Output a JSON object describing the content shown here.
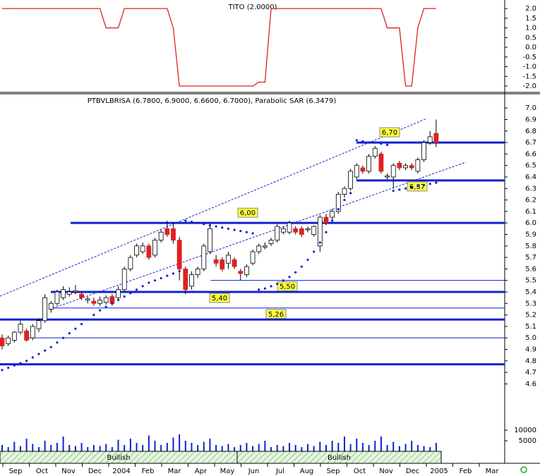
{
  "chart_data": [
    {
      "type": "line",
      "title": "TITO (2.0000)",
      "color": "#e02020",
      "ylim": [
        -2.29,
        2.44
      ],
      "yticks": [
        {
          "value": 2,
          "label": "2.0"
        },
        1.5,
        {
          "value": 1,
          "label": "1.0"
        },
        0.5,
        {
          "value": 0,
          "label": "0.0"
        },
        -0.5,
        {
          "value": -1,
          "label": "-1.0"
        },
        -1.5,
        {
          "value": -2,
          "label": "-2.0"
        }
      ],
      "values": [
        2,
        2,
        2,
        2,
        2,
        2,
        2,
        2,
        2,
        2,
        2,
        2,
        2,
        2,
        2,
        2,
        2,
        1,
        1,
        1,
        2,
        2,
        2,
        2,
        2,
        2,
        2,
        2,
        1,
        -2,
        -2,
        -2,
        -2,
        -2,
        -2,
        -2,
        -2,
        -2,
        -2,
        -2,
        -2,
        -2,
        -1.8,
        -1.8,
        2,
        2,
        2,
        2,
        2,
        2,
        2,
        2,
        2,
        2,
        2,
        2,
        2,
        2,
        2,
        2,
        2,
        2,
        2,
        1,
        1,
        1,
        -2,
        -2,
        1,
        2,
        2,
        2
      ]
    },
    {
      "type": "candlestick",
      "title": "PTBVLBRISA (6.7800, 6.9000, 6.6600, 6.7000), Parabolic SAR (6.3479)",
      "up_color": "#ffffff",
      "down_color": "#e02020",
      "sar_color": "#1020d0",
      "level_color": "#1020d0",
      "ylim": [
        4.32,
        7.13
      ],
      "yticks": [
        4.6,
        4.7,
        4.8,
        4.9,
        {
          "value": 5,
          "label": "5.0"
        },
        5.1,
        5.2,
        5.3,
        5.4,
        5.5,
        5.6,
        5.7,
        5.8,
        5.9,
        {
          "value": 6,
          "label": "6.0"
        },
        6.1,
        6.2,
        6.3,
        6.4,
        6.5,
        6.6,
        6.7,
        6.8,
        6.9,
        {
          "value": 7,
          "label": "7.0"
        }
      ],
      "open": [
        5.0,
        4.95,
        4.98,
        5.05,
        5.06,
        5.0,
        5.08,
        5.15,
        5.25,
        5.3,
        5.35,
        5.38,
        5.4,
        5.38,
        5.33,
        5.32,
        5.3,
        5.31,
        5.36,
        5.35,
        5.42,
        5.6,
        5.72,
        5.75,
        5.8,
        5.72,
        5.85,
        5.95,
        5.95,
        5.85,
        5.6,
        5.45,
        5.55,
        5.6,
        5.75,
        5.68,
        5.68,
        5.65,
        5.68,
        5.58,
        5.55,
        5.65,
        5.75,
        5.79,
        5.82,
        5.85,
        5.92,
        5.92,
        5.95,
        5.95,
        5.94,
        5.9,
        5.8,
        6.05,
        6.05,
        6.1,
        6.25,
        6.3,
        6.4,
        6.48,
        6.45,
        6.58,
        6.6,
        6.4,
        6.4,
        6.52,
        6.48,
        6.5,
        6.45,
        6.55,
        6.7,
        6.78
      ],
      "high": [
        5.03,
        5.02,
        5.06,
        5.15,
        5.08,
        5.12,
        5.17,
        5.38,
        5.32,
        5.42,
        5.45,
        5.44,
        5.46,
        5.4,
        5.36,
        5.35,
        5.36,
        5.37,
        5.38,
        5.45,
        5.62,
        5.72,
        5.82,
        5.83,
        5.82,
        5.87,
        5.94,
        6.02,
        6.0,
        5.88,
        5.62,
        5.58,
        5.62,
        5.82,
        5.98,
        5.72,
        5.7,
        5.75,
        5.7,
        5.6,
        5.64,
        5.77,
        5.82,
        5.83,
        5.87,
        5.99,
        5.97,
        6.02,
        5.97,
        5.97,
        5.97,
        5.98,
        6.07,
        6.08,
        6.12,
        6.27,
        6.32,
        6.47,
        6.52,
        6.5,
        6.6,
        6.67,
        6.62,
        6.43,
        6.52,
        6.54,
        6.52,
        6.52,
        6.57,
        6.72,
        6.8,
        6.9
      ],
      "low": [
        4.9,
        4.93,
        4.96,
        5.03,
        4.97,
        4.98,
        5.05,
        5.13,
        5.22,
        5.28,
        5.33,
        5.36,
        5.38,
        5.33,
        5.3,
        5.28,
        5.28,
        5.29,
        5.28,
        5.33,
        5.4,
        5.58,
        5.7,
        5.73,
        5.68,
        5.7,
        5.83,
        5.88,
        5.82,
        5.5,
        5.38,
        5.42,
        5.52,
        5.58,
        5.73,
        5.62,
        5.58,
        5.6,
        5.6,
        5.5,
        5.53,
        5.63,
        5.73,
        5.77,
        5.8,
        5.83,
        5.9,
        5.9,
        5.9,
        5.88,
        5.92,
        5.88,
        5.75,
        5.98,
        6.03,
        6.08,
        6.22,
        6.28,
        6.38,
        6.43,
        6.43,
        6.56,
        6.43,
        6.38,
        6.3,
        6.46,
        6.46,
        6.46,
        6.43,
        6.53,
        6.68,
        6.66
      ],
      "close": [
        4.93,
        5.0,
        5.05,
        5.12,
        4.98,
        5.1,
        5.15,
        5.35,
        5.3,
        5.4,
        5.42,
        5.4,
        5.41,
        5.35,
        5.34,
        5.3,
        5.33,
        5.35,
        5.3,
        5.42,
        5.6,
        5.7,
        5.8,
        5.8,
        5.7,
        5.85,
        5.92,
        5.9,
        5.85,
        5.6,
        5.42,
        5.55,
        5.6,
        5.8,
        5.95,
        5.65,
        5.6,
        5.72,
        5.62,
        5.56,
        5.62,
        5.75,
        5.8,
        5.8,
        5.85,
        5.97,
        5.95,
        6.0,
        5.92,
        5.9,
        5.95,
        5.97,
        6.05,
        6.0,
        6.1,
        6.25,
        6.3,
        6.45,
        6.5,
        6.45,
        6.58,
        6.65,
        6.45,
        6.41,
        6.5,
        6.48,
        6.5,
        6.48,
        6.55,
        6.7,
        6.75,
        6.7
      ],
      "sar": [
        4.72,
        4.74,
        4.76,
        4.78,
        4.8,
        4.83,
        4.86,
        4.89,
        4.92,
        4.96,
        5.0,
        5.04,
        5.08,
        5.12,
        5.16,
        5.2,
        5.24,
        5.27,
        5.3,
        5.33,
        5.36,
        5.39,
        5.42,
        5.45,
        5.48,
        5.5,
        5.52,
        5.54,
        5.56,
        5.58,
        6.02,
        6.01,
        6.0,
        5.99,
        5.98,
        5.97,
        5.96,
        5.95,
        5.94,
        5.93,
        5.92,
        5.91,
        5.42,
        5.43,
        5.45,
        5.47,
        5.5,
        5.53,
        5.57,
        5.62,
        5.68,
        5.75,
        5.83,
        5.92,
        6.02,
        6.12,
        6.2,
        6.26,
        6.72,
        6.71,
        6.7,
        6.7,
        6.69,
        6.68,
        6.28,
        6.29,
        6.3,
        6.31,
        6.32,
        6.33,
        6.34,
        6.35
      ],
      "levels": [
        {
          "value": 6.7,
          "label": "6,70",
          "weight": "thick"
        },
        {
          "value": 6.37,
          "label": "6,37",
          "weight": "thick"
        },
        {
          "value": 6.0,
          "label": "6,00",
          "weight": "thick"
        },
        {
          "value": 5.5,
          "label": "5,50",
          "weight": "thin"
        },
        {
          "value": 5.4,
          "label": "5,40",
          "weight": "thick"
        },
        {
          "value": 5.26,
          "label": "5,26",
          "weight": "thin"
        },
        {
          "value": 5.16,
          "weight": "thick"
        },
        {
          "value": 5.0,
          "weight": "thin"
        },
        {
          "value": 4.77,
          "weight": "thick"
        }
      ]
    },
    {
      "type": "bar",
      "color": "#1020d0",
      "ylim": [
        0,
        16700
      ],
      "yticks": [
        5000,
        10000
      ],
      "values": [
        3000,
        2000,
        4500,
        2500,
        6000,
        3500,
        2000,
        5000,
        3000,
        4000,
        7000,
        3000,
        2500,
        4000,
        2000,
        3000,
        2500,
        3500,
        2000,
        5500,
        3000,
        6000,
        4000,
        3000,
        7500,
        5000,
        3000,
        4000,
        6500,
        8000,
        5000,
        4000,
        3000,
        4500,
        6000,
        3000,
        2500,
        3500,
        2000,
        3000,
        4000,
        2500,
        3500,
        5000,
        2000,
        3000,
        2500,
        4000,
        3000,
        2000,
        3500,
        2500,
        4500,
        3000,
        5000,
        4000,
        7000,
        3500,
        6000,
        4000,
        3000,
        5000,
        7000,
        3000,
        4500,
        2500,
        3500,
        5000,
        3000,
        2500,
        2000,
        4000
      ],
      "x_axis_labels": [
        "Sep",
        "Oct",
        "Nov",
        "Dec",
        "2004",
        "Feb",
        "Mar",
        "Apr",
        "May",
        "Jun",
        "Jul",
        "Aug",
        "Sep",
        "Oct",
        "Nov",
        "Dec",
        "2005",
        "Feb",
        "Mar"
      ],
      "signals": [
        "Bullish",
        "Bullish"
      ]
    }
  ]
}
